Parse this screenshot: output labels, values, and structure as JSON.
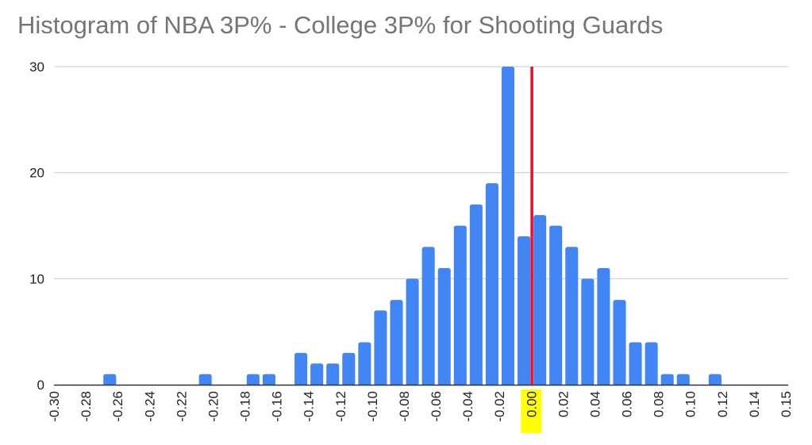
{
  "chart_data": {
    "type": "bar",
    "title": "Histogram of NBA 3P% - College 3P% for Shooting Guards",
    "xlabel": "",
    "ylabel": "",
    "ylim": [
      0,
      30
    ],
    "yticks": [
      0,
      10,
      20,
      30
    ],
    "grid": true,
    "bin_width": 0.01,
    "xtick_labels": [
      "-0.30",
      "-0.28",
      "-0.26",
      "-0.24",
      "-0.22",
      "-0.20",
      "-0.18",
      "-0.16",
      "-0.14",
      "-0.12",
      "-0.10",
      "-0.08",
      "-0.06",
      "-0.04",
      "-0.02",
      "0.00",
      "0.02",
      "0.04",
      "0.06",
      "0.08",
      "0.10",
      "0.12",
      "0.14",
      "0.15"
    ],
    "highlighted_tick": "0.00",
    "bins": [
      {
        "center": -0.265,
        "count": 1
      },
      {
        "center": -0.205,
        "count": 1
      },
      {
        "center": -0.175,
        "count": 1
      },
      {
        "center": -0.165,
        "count": 1
      },
      {
        "center": -0.145,
        "count": 3
      },
      {
        "center": -0.135,
        "count": 2
      },
      {
        "center": -0.125,
        "count": 2
      },
      {
        "center": -0.115,
        "count": 3
      },
      {
        "center": -0.105,
        "count": 4
      },
      {
        "center": -0.095,
        "count": 7
      },
      {
        "center": -0.085,
        "count": 8
      },
      {
        "center": -0.075,
        "count": 10
      },
      {
        "center": -0.065,
        "count": 13
      },
      {
        "center": -0.055,
        "count": 11
      },
      {
        "center": -0.045,
        "count": 15
      },
      {
        "center": -0.035,
        "count": 17
      },
      {
        "center": -0.025,
        "count": 19
      },
      {
        "center": -0.015,
        "count": 30
      },
      {
        "center": -0.005,
        "count": 14
      },
      {
        "center": 0.005,
        "count": 16
      },
      {
        "center": 0.015,
        "count": 15
      },
      {
        "center": 0.025,
        "count": 13
      },
      {
        "center": 0.035,
        "count": 10
      },
      {
        "center": 0.045,
        "count": 11
      },
      {
        "center": 0.055,
        "count": 8
      },
      {
        "center": 0.065,
        "count": 4
      },
      {
        "center": 0.075,
        "count": 4
      },
      {
        "center": 0.085,
        "count": 1
      },
      {
        "center": 0.095,
        "count": 1
      },
      {
        "center": 0.115,
        "count": 1
      }
    ],
    "reference_line": {
      "x": 0.0,
      "color": "#e8102a"
    },
    "colors": {
      "bar": "#4285f4",
      "highlight": "#ffff00",
      "grid": "#cccccc",
      "axis": "#333333"
    }
  }
}
